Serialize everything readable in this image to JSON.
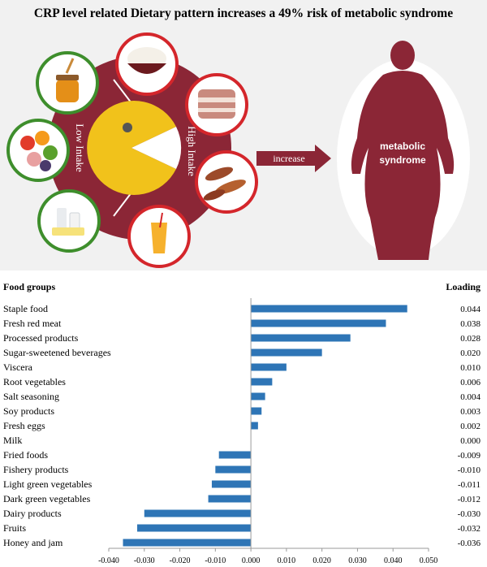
{
  "infographic": {
    "title": "CRP level related Dietary pattern increases a 49% risk of metabolic syndrome",
    "low_label": "Low Intake",
    "high_label": "High Intake",
    "arrow_label": "increase",
    "outcome_label_line1": "metabolic",
    "outcome_label_line2": "syndrome",
    "colors": {
      "maroon": "#8b2636",
      "yellow": "#f1c21b",
      "green": "#3e8e2c",
      "red_ring": "#d4262b"
    },
    "icons": [
      "rice-bowl-icon",
      "pork-belly-icon",
      "sausage-icon",
      "juice-glass-icon",
      "honey-jar-icon",
      "fruits-icon",
      "dairy-icon",
      "body-silhouette-icon"
    ]
  },
  "chart_data": {
    "type": "bar",
    "orientation": "horizontal",
    "category_header": "Food groups",
    "value_header": "Loading",
    "categories": [
      "Staple food",
      "Fresh red meat",
      "Processed products",
      "Sugar-sweetened beverages",
      "Viscera",
      "Root vegetables",
      "Salt seasoning",
      "Soy products",
      "Fresh eggs",
      "Milk",
      "Fried foods",
      "Fishery products",
      "Light green vegetables",
      "Dark green vegetables",
      "Dairy products",
      "Fruits",
      "Honey and jam"
    ],
    "values": [
      0.044,
      0.038,
      0.028,
      0.02,
      0.01,
      0.006,
      0.004,
      0.003,
      0.002,
      0.0,
      -0.009,
      -0.01,
      -0.011,
      -0.012,
      -0.03,
      -0.032,
      -0.036
    ],
    "value_labels": [
      "0.044",
      "0.038",
      "0.028",
      "0.020",
      "0.010",
      "0.006",
      "0.004",
      "0.003",
      "0.002",
      "0.000",
      "-0.009",
      "-0.010",
      "-0.011",
      "-0.012",
      "-0.030",
      "-0.032",
      "-0.036"
    ],
    "xlim": [
      -0.04,
      0.05
    ],
    "xticks": [
      "-0.040",
      "-0.030",
      "-0.020",
      "-0.010",
      "0.000",
      "0.010",
      "0.020",
      "0.030",
      "0.040",
      "0.050"
    ],
    "bar_color": "#2e75b6",
    "grid": false
  }
}
